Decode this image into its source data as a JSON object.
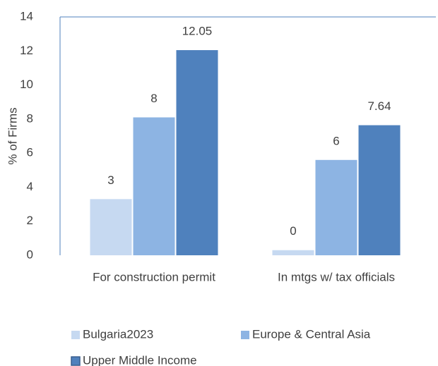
{
  "chart_data": {
    "type": "bar",
    "y_label": "% of Firms",
    "categories": [
      "For construction permit",
      "In mtgs w/ tax officials"
    ],
    "series": [
      {
        "name": "Bulgaria2023",
        "color": "#c6d9f1",
        "values": [
          3.3,
          0.3
        ],
        "value_labels": [
          "3",
          "0"
        ]
      },
      {
        "name": "Europe & Central Asia",
        "color": "#8db4e3",
        "values": [
          8.1,
          5.6
        ],
        "value_labels": [
          "8",
          "6"
        ]
      },
      {
        "name": "Upper Middle Income",
        "color": "#4f81bd",
        "values": [
          12.05,
          7.64
        ]
      }
    ],
    "ylim": [
      0,
      14
    ],
    "yticks": [
      0,
      2,
      4,
      6,
      8,
      10,
      12,
      14
    ],
    "grid": false
  }
}
